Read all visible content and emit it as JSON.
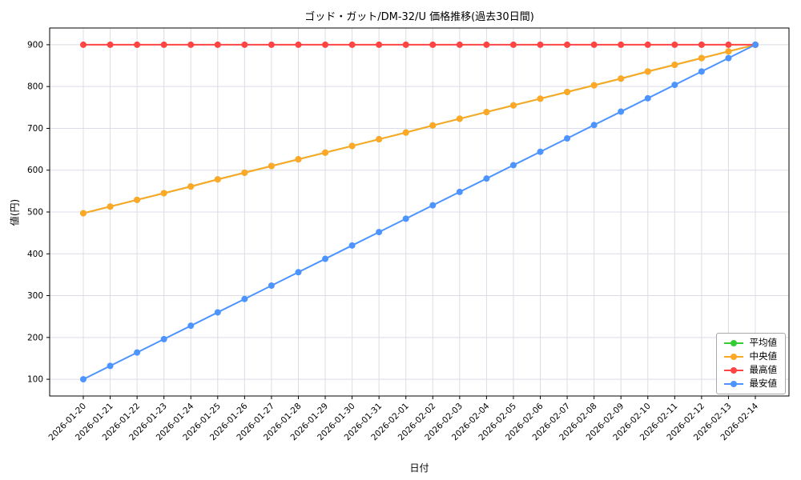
{
  "chart": {
    "background": "#ffffff",
    "plot_background": "#ffffff",
    "grid_color": "#dcdce8",
    "axis_color": "#000000",
    "yticks": [
      100,
      200,
      300,
      400,
      500,
      600,
      700,
      800,
      900
    ]
  },
  "chart_data": {
    "type": "line",
    "title": "ゴッド・ガット/DM-32/U 価格推移(過去30日間)",
    "xlabel": "日付",
    "ylabel": "値(円)",
    "grid": true,
    "legend_position": "lower right",
    "ylim": [
      60,
      940
    ],
    "x": [
      "2026-01-20",
      "2026-01-21",
      "2026-01-22",
      "2026-01-23",
      "2026-01-24",
      "2026-01-25",
      "2026-01-26",
      "2026-01-27",
      "2026-01-28",
      "2026-01-29",
      "2026-01-30",
      "2026-01-31",
      "2026-02-01",
      "2026-02-02",
      "2026-02-03",
      "2026-02-04",
      "2026-02-05",
      "2026-02-06",
      "2026-02-07",
      "2026-02-08",
      "2026-02-09",
      "2026-02-10",
      "2026-02-11",
      "2026-02-12",
      "2026-02-13",
      "2026-02-14"
    ],
    "series": [
      {
        "name": "平均値",
        "color": "#33cc33",
        "values": [
          497,
          513,
          529,
          545,
          561,
          578,
          594,
          610,
          626,
          642,
          658,
          674,
          690,
          707,
          723,
          739,
          755,
          771,
          787,
          803,
          819,
          836,
          852,
          868,
          884,
          900
        ],
        "note": "coincides with 中央値 and is hidden beneath it"
      },
      {
        "name": "中央値",
        "color": "#ffa726",
        "values": [
          497,
          513,
          529,
          545,
          561,
          578,
          594,
          610,
          626,
          642,
          658,
          674,
          690,
          707,
          723,
          739,
          755,
          771,
          787,
          803,
          819,
          836,
          852,
          868,
          884,
          900
        ]
      },
      {
        "name": "最高値",
        "color": "#ff4444",
        "values": [
          900,
          900,
          900,
          900,
          900,
          900,
          900,
          900,
          900,
          900,
          900,
          900,
          900,
          900,
          900,
          900,
          900,
          900,
          900,
          900,
          900,
          900,
          900,
          900,
          900,
          900
        ]
      },
      {
        "name": "最安値",
        "color": "#4d94ff",
        "values": [
          100,
          132,
          164,
          196,
          228,
          260,
          292,
          324,
          356,
          388,
          420,
          452,
          484,
          516,
          548,
          580,
          612,
          644,
          676,
          708,
          740,
          772,
          804,
          836,
          868,
          900
        ]
      }
    ]
  }
}
